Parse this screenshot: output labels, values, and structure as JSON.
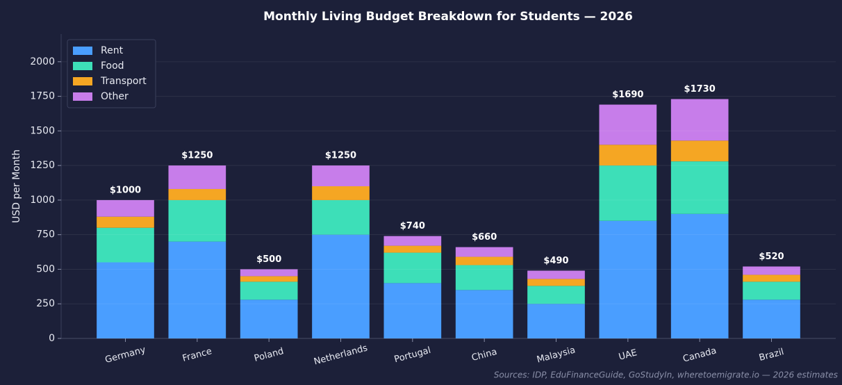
{
  "chart_data": {
    "type": "stacked_bar",
    "title": "Monthly Living Budget Breakdown for Students — 2026",
    "ylabel": "USD per Month",
    "source": "Sources: IDP, EduFinanceGuide, GoStudyIn, wheretoemigrate.io — 2026 estimates",
    "categories": [
      "Germany",
      "France",
      "Poland",
      "Netherlands",
      "Portugal",
      "China",
      "Malaysia",
      "UAE",
      "Canada",
      "Brazil"
    ],
    "series": [
      {
        "name": "Rent",
        "color": "#4a9eff",
        "values": [
          550,
          700,
          280,
          750,
          400,
          350,
          250,
          850,
          900,
          280
        ]
      },
      {
        "name": "Food",
        "color": "#3ddfb8",
        "values": [
          250,
          300,
          130,
          250,
          220,
          180,
          130,
          400,
          380,
          130
        ]
      },
      {
        "name": "Transport",
        "color": "#f5a623",
        "values": [
          80,
          80,
          40,
          100,
          50,
          60,
          50,
          150,
          150,
          50
        ]
      },
      {
        "name": "Other",
        "color": "#c77dea",
        "values": [
          120,
          170,
          50,
          150,
          70,
          70,
          60,
          290,
          300,
          60
        ]
      }
    ],
    "total_labels": [
      "$1000",
      "$1250",
      "$500",
      "$1250",
      "$740",
      "$660",
      "$490",
      "$1690",
      "$1730",
      "$520"
    ],
    "ylim": [
      0,
      2200
    ],
    "yticks": [
      0,
      250,
      500,
      750,
      1000,
      1250,
      1500,
      1750,
      2000
    ],
    "grid": true,
    "legend": "upper left"
  }
}
